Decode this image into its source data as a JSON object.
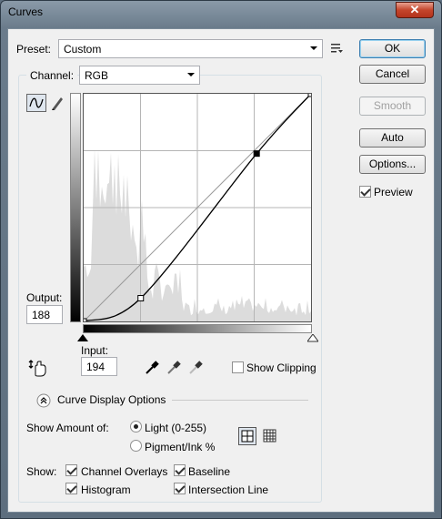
{
  "window": {
    "title": "Curves",
    "close_glyph": "✕"
  },
  "preset": {
    "label": "Preset:",
    "value": "Custom",
    "menu_icon": "preset-options-icon"
  },
  "channel": {
    "label": "Channel:",
    "value": "RGB"
  },
  "buttons": {
    "ok": "OK",
    "cancel": "Cancel",
    "smooth": "Smooth",
    "auto": "Auto",
    "options": "Options..."
  },
  "preview": {
    "label": "Preview",
    "checked": true
  },
  "output": {
    "label": "Output:",
    "value": "188"
  },
  "input": {
    "label": "Input:",
    "value": "194"
  },
  "show_clipping": {
    "label": "Show Clipping",
    "checked": false
  },
  "curve_display_options": {
    "label": "Curve Display Options"
  },
  "show_amount": {
    "label": "Show Amount of:",
    "options": [
      {
        "label": "Light  (0-255)",
        "selected": true
      },
      {
        "label": "Pigment/Ink %",
        "selected": false
      }
    ]
  },
  "show": {
    "label": "Show:",
    "items": [
      {
        "label": "Channel Overlays",
        "checked": true
      },
      {
        "label": "Baseline",
        "checked": true
      },
      {
        "label": "Histogram",
        "checked": true
      },
      {
        "label": "Intersection Line",
        "checked": true
      }
    ]
  },
  "curve": {
    "points": [
      [
        0,
        0
      ],
      [
        64,
        26
      ],
      [
        194,
        188
      ],
      [
        255,
        255
      ]
    ]
  }
}
